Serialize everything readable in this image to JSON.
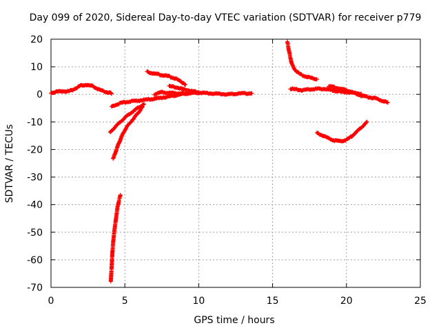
{
  "chart_data": {
    "type": "scatter",
    "title": "Day 099 of 2020, Sidereal Day-to-day VTEC variation (SDTVAR) for receiver p779",
    "xlabel": "GPS time / hours",
    "ylabel": "SDTVAR / TECUs",
    "xlim": [
      0,
      25
    ],
    "ylim": [
      -70,
      20
    ],
    "xticks": [
      "0",
      "5",
      "10",
      "15",
      "20",
      "25"
    ],
    "yticks": [
      "20",
      "10",
      "0",
      "-10",
      "-20",
      "-30",
      "-40",
      "-50",
      "-60",
      "-70"
    ],
    "grid": true,
    "legend": "none",
    "marker": "plus",
    "color": "#ff0000",
    "series": [
      {
        "values": [
          [
            0.0,
            0.5
          ],
          [
            0.4,
            1.0
          ],
          [
            0.8,
            1.2
          ],
          [
            1.2,
            1.0
          ],
          [
            1.6,
            2.0
          ],
          [
            2.0,
            3.2
          ],
          [
            2.4,
            3.4
          ],
          [
            2.8,
            3.0
          ],
          [
            3.2,
            1.8
          ],
          [
            3.6,
            1.0
          ],
          [
            4.0,
            0.5
          ],
          [
            4.1,
            0.2
          ]
        ]
      },
      {
        "values": [
          [
            4.1,
            -4.5
          ],
          [
            4.5,
            -3.5
          ],
          [
            5.0,
            -2.8
          ],
          [
            6.0,
            -2.2
          ],
          [
            7.0,
            -1.6
          ],
          [
            8.0,
            -0.8
          ],
          [
            9.0,
            0.2
          ],
          [
            10.0,
            0.6
          ],
          [
            11.0,
            0.3
          ],
          [
            12.0,
            0.0
          ],
          [
            13.0,
            0.4
          ],
          [
            13.6,
            0.3
          ]
        ]
      },
      {
        "values": [
          [
            4.2,
            -23.5
          ],
          [
            4.5,
            -19.0
          ],
          [
            4.8,
            -15.0
          ],
          [
            5.1,
            -12.0
          ],
          [
            5.4,
            -10.0
          ],
          [
            5.7,
            -8.0
          ],
          [
            6.0,
            -6.0
          ],
          [
            6.2,
            -4.5
          ]
        ]
      },
      {
        "values": [
          [
            4.0,
            -13.8
          ],
          [
            4.4,
            -11.5
          ],
          [
            4.8,
            -9.5
          ],
          [
            5.2,
            -7.5
          ],
          [
            5.6,
            -6.0
          ],
          [
            6.0,
            -4.5
          ],
          [
            6.3,
            -3.5
          ]
        ]
      },
      {
        "values": [
          [
            4.05,
            -68.0
          ],
          [
            4.1,
            -63.0
          ],
          [
            4.15,
            -58.0
          ],
          [
            4.2,
            -54.0
          ],
          [
            4.3,
            -49.0
          ],
          [
            4.4,
            -45.0
          ],
          [
            4.5,
            -41.0
          ],
          [
            4.6,
            -38.5
          ],
          [
            4.7,
            -36.5
          ]
        ]
      },
      {
        "values": [
          [
            6.5,
            8.2
          ],
          [
            7.0,
            7.5
          ],
          [
            7.5,
            7.0
          ],
          [
            8.0,
            6.5
          ],
          [
            8.5,
            5.5
          ],
          [
            9.0,
            4.0
          ],
          [
            9.1,
            3.5
          ]
        ]
      },
      {
        "values": [
          [
            8.0,
            3.0
          ],
          [
            8.5,
            2.5
          ],
          [
            9.0,
            1.8
          ],
          [
            9.5,
            1.2
          ],
          [
            10.0,
            0.8
          ]
        ]
      },
      {
        "values": [
          [
            7.0,
            0.0
          ],
          [
            7.5,
            0.8
          ],
          [
            8.0,
            0.5
          ],
          [
            8.5,
            0.3
          ],
          [
            9.0,
            0.6
          ]
        ]
      },
      {
        "values": [
          [
            16.0,
            19.0
          ],
          [
            16.1,
            16.0
          ],
          [
            16.2,
            13.5
          ],
          [
            16.3,
            11.0
          ],
          [
            16.5,
            9.0
          ],
          [
            16.8,
            7.5
          ],
          [
            17.2,
            6.5
          ],
          [
            17.6,
            6.0
          ],
          [
            18.0,
            5.5
          ]
        ]
      },
      {
        "values": [
          [
            16.2,
            2.0
          ],
          [
            16.6,
            1.8
          ],
          [
            17.0,
            1.5
          ],
          [
            17.5,
            1.8
          ],
          [
            18.0,
            2.0
          ],
          [
            18.5,
            2.0
          ],
          [
            19.0,
            1.5
          ],
          [
            19.5,
            1.0
          ],
          [
            20.0,
            0.8
          ],
          [
            20.5,
            0.5
          ],
          [
            21.0,
            0.2
          ]
        ]
      },
      {
        "values": [
          [
            18.8,
            3.0
          ],
          [
            19.2,
            2.5
          ],
          [
            19.6,
            2.0
          ],
          [
            20.0,
            1.5
          ],
          [
            20.5,
            0.5
          ],
          [
            21.0,
            -0.5
          ],
          [
            21.5,
            -1.0
          ],
          [
            22.0,
            -1.5
          ],
          [
            22.5,
            -2.5
          ],
          [
            22.8,
            -3.0
          ]
        ]
      },
      {
        "values": [
          [
            18.0,
            -14.0
          ],
          [
            18.4,
            -15.0
          ],
          [
            18.8,
            -16.0
          ],
          [
            19.2,
            -16.8
          ],
          [
            19.6,
            -17.0
          ],
          [
            20.0,
            -16.5
          ],
          [
            20.4,
            -15.0
          ],
          [
            20.8,
            -13.0
          ],
          [
            21.2,
            -11.0
          ],
          [
            21.4,
            -10.0
          ]
        ]
      }
    ]
  }
}
